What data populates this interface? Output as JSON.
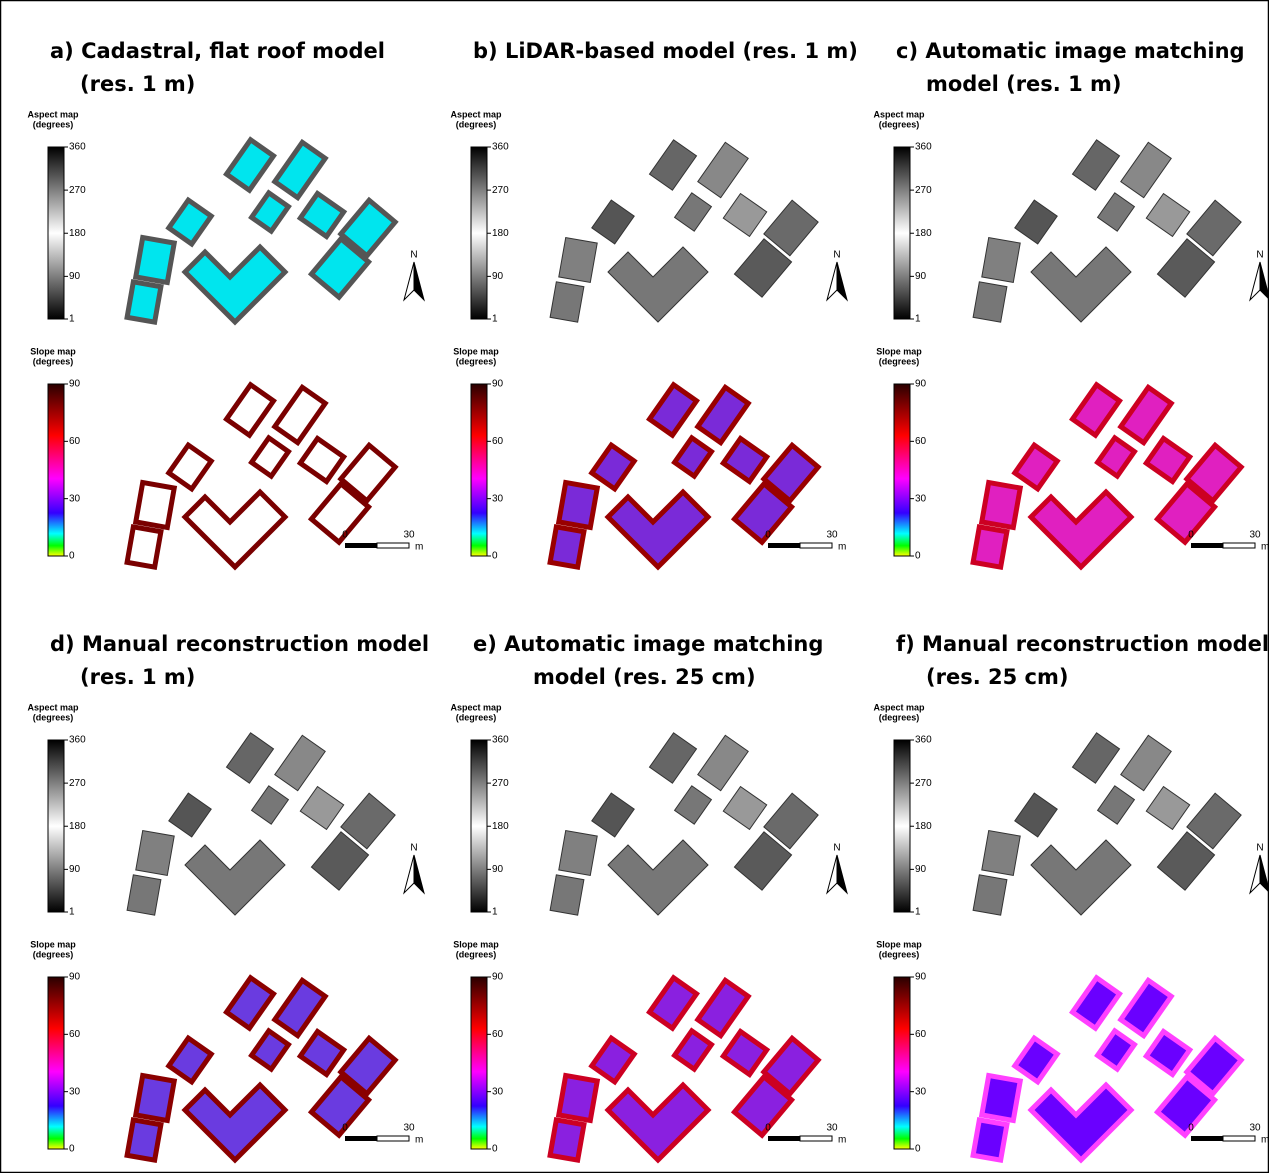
{
  "panels": [
    {
      "title": [
        "a) Cadastral, flat roof model",
        "(res. 1 m)"
      ],
      "aspect_legend": {
        "title": [
          "Aspect map",
          "(degrees)"
        ],
        "ticks": [
          360,
          270,
          180,
          90,
          1
        ]
      },
      "slope_legend": {
        "title": [
          "Slope map",
          "(degrees)"
        ],
        "ticks": [
          90,
          60,
          30,
          0
        ]
      },
      "north": "N",
      "scale_bar": {
        "ticks": [
          0,
          30
        ],
        "unit": "m"
      }
    },
    {
      "title": [
        "b) LiDAR-based model (res. 1 m)"
      ],
      "aspect_legend": {
        "title": [
          "Aspect map",
          "(degrees)"
        ],
        "ticks": [
          360,
          270,
          180,
          90,
          1
        ]
      },
      "slope_legend": {
        "title": [
          "Slope map",
          "(degrees)"
        ],
        "ticks": [
          90,
          60,
          30,
          0
        ]
      },
      "north": "N",
      "scale_bar": {
        "ticks": [
          0,
          30
        ],
        "unit": "m"
      }
    },
    {
      "title": [
        "c) Automatic image matching",
        "model (res. 1 m)"
      ],
      "aspect_legend": {
        "title": [
          "Aspect map",
          "(degrees)"
        ],
        "ticks": [
          360,
          270,
          180,
          90,
          1
        ]
      },
      "slope_legend": {
        "title": [
          "Slope map",
          "(degrees)"
        ],
        "ticks": [
          90,
          60,
          30,
          0
        ]
      },
      "north": "N",
      "scale_bar": {
        "ticks": [
          0,
          30
        ],
        "unit": "m"
      }
    },
    {
      "title": [
        "d) Manual reconstruction model",
        "(res. 1 m)"
      ],
      "aspect_legend": {
        "title": [
          "Aspect map",
          "(degrees)"
        ],
        "ticks": [
          360,
          270,
          180,
          90,
          1
        ]
      },
      "slope_legend": {
        "title": [
          "Slope map",
          "(degrees)"
        ],
        "ticks": [
          90,
          60,
          30,
          0
        ]
      },
      "north": "N",
      "scale_bar": {
        "ticks": [
          0,
          30
        ],
        "unit": "m"
      }
    },
    {
      "title": [
        "e) Automatic image matching",
        "model (res. 25 cm)"
      ],
      "aspect_legend": {
        "title": [
          "Aspect map",
          "(degrees)"
        ],
        "ticks": [
          360,
          270,
          180,
          90,
          1
        ]
      },
      "slope_legend": {
        "title": [
          "Slope map",
          "(degrees)"
        ],
        "ticks": [
          90,
          60,
          30,
          0
        ]
      },
      "north": "N",
      "scale_bar": {
        "ticks": [
          0,
          30
        ],
        "unit": "m"
      }
    },
    {
      "title": [
        "f) Manual reconstruction model",
        "(res. 25 cm)"
      ],
      "aspect_legend": {
        "title": [
          "Aspect map",
          "(degrees)"
        ],
        "ticks": [
          360,
          270,
          180,
          90,
          1
        ]
      },
      "slope_legend": {
        "title": [
          "Slope map",
          "(degrees)"
        ],
        "ticks": [
          90,
          60,
          30,
          0
        ]
      },
      "north": "N",
      "scale_bar": {
        "ticks": [
          0,
          30
        ],
        "unit": "m"
      }
    }
  ]
}
